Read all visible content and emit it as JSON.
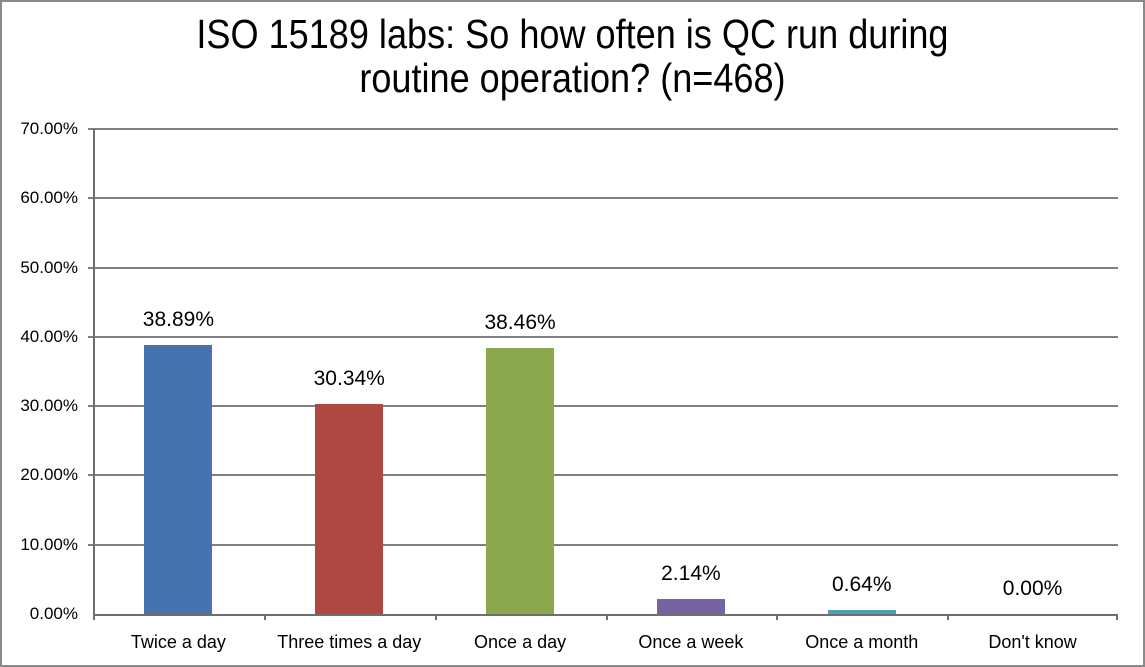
{
  "chart_data": {
    "type": "bar",
    "title": "ISO 15189 labs: So how often is QC run during routine operation? (n=468)",
    "title_lines": [
      "ISO 15189 labs: So how often is QC run during",
      "routine operation? (n=468)"
    ],
    "categories": [
      "Twice a day",
      "Three times a day",
      "Once a day",
      "Once a week",
      "Once a month",
      "Don't know"
    ],
    "values": [
      38.89,
      30.34,
      38.46,
      2.14,
      0.64,
      0.0
    ],
    "value_labels": [
      "38.89%",
      "30.34%",
      "38.46%",
      "2.14%",
      "0.64%",
      "0.00%"
    ],
    "bar_colors": [
      "#4673b0",
      "#ae4843",
      "#8ba84f",
      "#7763a0",
      "#4da0b0",
      null
    ],
    "ylabel_ticks": [
      "0.00%",
      "10.00%",
      "20.00%",
      "30.00%",
      "40.00%",
      "50.00%",
      "60.00%",
      "70.00%"
    ],
    "ylim": [
      0,
      70
    ],
    "grid": true,
    "legend": false
  }
}
